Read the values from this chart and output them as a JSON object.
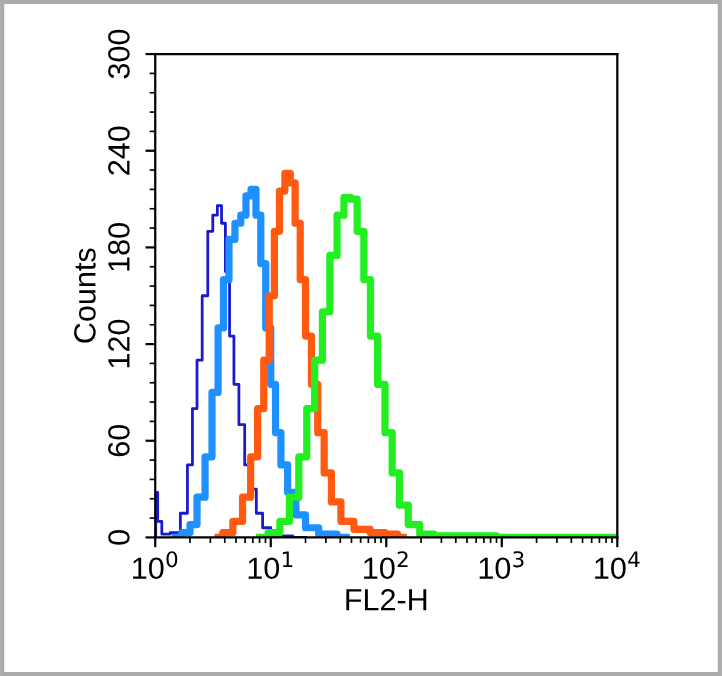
{
  "chart_data": {
    "type": "step",
    "xlabel": "FL2-H",
    "ylabel": "Counts",
    "log": "x",
    "xlim": [
      1,
      10000
    ],
    "ylim": [
      0,
      300
    ],
    "xticks": [
      {
        "value": 1,
        "label": "10$^{0}$"
      },
      {
        "value": 10,
        "label": "10$^{1}$"
      },
      {
        "value": 100,
        "label": "10$^{2}$"
      },
      {
        "value": 1000,
        "label": "10$^{3}$"
      },
      {
        "value": 10000,
        "label": "10$^{4}$"
      }
    ],
    "yticks": [
      0,
      60,
      120,
      180,
      240,
      300
    ],
    "grid": false,
    "legend": false,
    "line_style": "solid",
    "marker": "none",
    "series": [
      {
        "color": "#1a1acc",
        "x": [
          1.0,
          1.02,
          1.08,
          1.2,
          1.5,
          1.8,
          2.0,
          2.2,
          2.4,
          2.7,
          3.0,
          3.3,
          3.6,
          3.9,
          4.2,
          4.6,
          5.0,
          5.6,
          6.3,
          7.0,
          8.0,
          9.0,
          11,
          20
        ],
        "values": [
          0,
          28,
          10,
          2,
          3,
          15,
          45,
          80,
          110,
          150,
          190,
          200,
          206,
          195,
          165,
          125,
          95,
          70,
          45,
          30,
          15,
          6,
          1,
          0
        ]
      },
      {
        "color": "#1e90ff",
        "x": [
          1.5,
          1.9,
          2.1,
          2.5,
          2.9,
          3.3,
          3.7,
          4.1,
          4.6,
          5.2,
          5.8,
          6.4,
          7.1,
          7.8,
          8.6,
          9.5,
          10.5,
          11.5,
          13,
          15,
          18,
          22,
          30,
          45
        ],
        "values": [
          0,
          3,
          8,
          25,
          50,
          90,
          130,
          160,
          185,
          195,
          200,
          212,
          216,
          200,
          170,
          130,
          95,
          65,
          45,
          28,
          14,
          6,
          2,
          0
        ]
      },
      {
        "color": "#ff5a10",
        "x": [
          3.5,
          4.2,
          5.2,
          6.2,
          7.2,
          8.2,
          9.2,
          10.2,
          11.3,
          12.5,
          14,
          15.5,
          17,
          19,
          21,
          24,
          27,
          31,
          36,
          45,
          60,
          85,
          110,
          140
        ],
        "values": [
          0,
          3,
          10,
          25,
          50,
          80,
          110,
          150,
          190,
          215,
          226,
          220,
          195,
          160,
          125,
          95,
          65,
          40,
          22,
          10,
          5,
          3,
          2,
          0
        ]
      },
      {
        "color": "#22ee22",
        "x": [
          8,
          11,
          13,
          16,
          19,
          22,
          26,
          30,
          35,
          40,
          46,
          52,
          60,
          68,
          78,
          90,
          105,
          120,
          140,
          170,
          220,
          300,
          800,
          1000,
          10000
        ],
        "values": [
          0,
          3,
          10,
          25,
          50,
          80,
          110,
          140,
          175,
          200,
          211,
          210,
          190,
          160,
          125,
          95,
          65,
          40,
          20,
          8,
          2,
          1,
          1,
          0,
          0
        ]
      }
    ]
  }
}
